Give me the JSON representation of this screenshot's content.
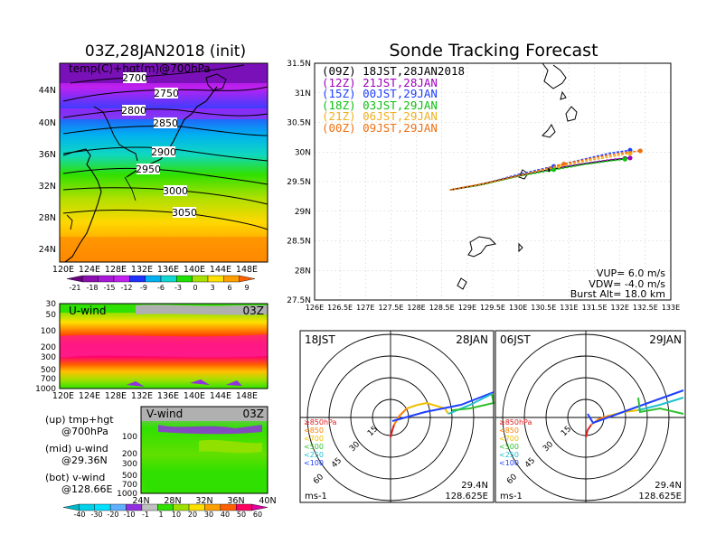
{
  "map_panel": {
    "title": "03Z,28JAN2018  (init)",
    "label": "temp(C)+hgt(m)@700hPa",
    "lat_ticks": [
      "44N",
      "40N",
      "36N",
      "32N",
      "28N",
      "24N"
    ],
    "lon_ticks": [
      "120E",
      "124E",
      "128E",
      "132E",
      "136E",
      "140E",
      "144E",
      "148E"
    ],
    "contour_labels": [
      "2700",
      "2750",
      "2800",
      "2850",
      "2900",
      "2950",
      "3000",
      "3050"
    ],
    "colorbar_labels": [
      "-21",
      "-18",
      "-15",
      "-12",
      "-9",
      "-6",
      "-3",
      "0",
      "3",
      "6",
      "9"
    ],
    "colorbar_colors": [
      "#6a0080",
      "#8c10b0",
      "#a818d8",
      "#c020f0",
      "#2030ff",
      "#00b0f0",
      "#10d8d0",
      "#20e000",
      "#a8e000",
      "#ffe000",
      "#ffa000",
      "#ff6000"
    ]
  },
  "u_panel": {
    "title": "U-wind",
    "time": "03Z",
    "y_ticks": [
      "30",
      "50",
      "100",
      "200",
      "300",
      "500",
      "700",
      "1000"
    ],
    "x_ticks": [
      "120E",
      "124E",
      "128E",
      "132E",
      "136E",
      "140E",
      "144E",
      "148E"
    ]
  },
  "v_panel": {
    "title": "V-wind",
    "time": "03Z",
    "y_ticks": [
      "100",
      "200",
      "300",
      "500",
      "700",
      "1000"
    ],
    "x_ticks": [
      "24N",
      "28N",
      "32N",
      "36N",
      "40N"
    ]
  },
  "notes": {
    "up_1": "(up) tmp+hgt",
    "up_2": "@700hPa",
    "mid_1": "(mid) u-wind",
    "mid_2": "@29.36N",
    "bot_1": "(bot) v-wind",
    "bot_2": "@128.66E"
  },
  "wind_colorbar": {
    "labels": [
      "-40",
      "-30",
      "-20",
      "-10",
      "-1",
      "1",
      "10",
      "20",
      "30",
      "40",
      "50",
      "60"
    ],
    "colors": [
      "#00b8c8",
      "#00d0e8",
      "#00e0ff",
      "#60b0ff",
      "#9030e0",
      "#c0c0c0",
      "#30e000",
      "#a0e000",
      "#ffe000",
      "#ffa000",
      "#ff6000",
      "#ff0060",
      "#e000a0"
    ]
  },
  "tracking": {
    "title": "Sonde Tracking Forecast",
    "legend": [
      {
        "label": "(09Z) 18JST,28JAN2018",
        "color": "#000000"
      },
      {
        "label": "(12Z) 21JST,28JAN",
        "color": "#a000c0"
      },
      {
        "label": "(15Z) 00JST,29JAN",
        "color": "#2040ff"
      },
      {
        "label": "(18Z) 03JST,29JAN",
        "color": "#10c010"
      },
      {
        "label": "(21Z) 06JST,29JAN",
        "color": "#f0b020"
      },
      {
        "label": "(00Z) 09JST,29JAN",
        "color": "#f07010"
      }
    ],
    "params": {
      "vup": "VUP=  6.0  m/s",
      "vdw": "VDW=  -4.0  m/s",
      "burst": "Burst Alt=  18.0  km"
    },
    "x_ticks": [
      "126E",
      "126.5E",
      "127E",
      "127.5E",
      "128E",
      "128.5E",
      "129E",
      "129.5E",
      "130E",
      "130.5E",
      "131E",
      "131.5E",
      "132E",
      "132.5E",
      "133E"
    ],
    "y_ticks": [
      "31.5N",
      "31N",
      "30.5N",
      "30N",
      "29.5N",
      "29N",
      "28.5N",
      "28N",
      "27.5N"
    ]
  },
  "hodographs": [
    {
      "time": "18JST",
      "date": "28JAN",
      "lat": "29.4N",
      "lon": "128.625E",
      "unit": "ms-1",
      "rings": [
        "15",
        "30",
        "45",
        "60"
      ]
    },
    {
      "time": "06JST",
      "date": "29JAN",
      "lat": "29.4N",
      "lon": "128.625E",
      "unit": "ms-1",
      "rings": [
        "15",
        "30",
        "45",
        "60"
      ]
    }
  ],
  "hodo_legend": [
    {
      "label": "≥850hPa",
      "color": "#e02020"
    },
    {
      "label": "<850",
      "color": "#ff8000"
    },
    {
      "label": "<700",
      "color": "#f0c000"
    },
    {
      "label": "<500",
      "color": "#30c030"
    },
    {
      "label": "<250",
      "color": "#20c0d0"
    },
    {
      "label": "<100",
      "color": "#2040ff"
    }
  ],
  "chart_data": {
    "type": "line",
    "title": "Sonde Tracking Forecast",
    "xlim": [
      126,
      133
    ],
    "ylim": [
      27.5,
      31.5
    ],
    "series": [
      {
        "name": "(09Z) 18JST,28JAN2018",
        "x": [
          128.66,
          129.2,
          129.9,
          130.6,
          131.3,
          131.8,
          132.1
        ],
        "y": [
          29.36,
          29.44,
          29.58,
          29.7,
          29.8,
          29.86,
          29.89
        ]
      },
      {
        "name": "(12Z) 21JST,28JAN",
        "x": [
          128.66,
          129.3,
          130.0,
          130.7,
          131.4,
          131.9,
          132.2
        ],
        "y": [
          29.36,
          29.45,
          29.6,
          29.72,
          29.82,
          29.88,
          29.9
        ]
      },
      {
        "name": "(15Z) 00JST,29JAN",
        "x": [
          128.66,
          129.3,
          130.0,
          130.7,
          131.3,
          131.8,
          132.2
        ],
        "y": [
          29.36,
          29.46,
          29.62,
          29.76,
          29.88,
          29.98,
          30.03
        ]
      },
      {
        "name": "(18Z) 03JST,29JAN",
        "x": [
          128.66,
          129.3,
          130.0,
          130.7,
          131.3,
          131.8,
          132.1
        ],
        "y": [
          29.36,
          29.45,
          29.59,
          29.7,
          29.79,
          29.85,
          29.88
        ]
      },
      {
        "name": "(21Z) 06JST,29JAN",
        "x": [
          128.66,
          129.3,
          130.1,
          130.8,
          131.4,
          131.9,
          132.2
        ],
        "y": [
          29.36,
          29.46,
          29.62,
          29.76,
          29.86,
          29.93,
          29.98
        ]
      },
      {
        "name": "(00Z) 09JST,29JAN",
        "x": [
          128.66,
          129.4,
          130.2,
          130.9,
          131.6,
          132.1,
          132.4
        ],
        "y": [
          29.36,
          29.48,
          29.64,
          29.8,
          29.92,
          29.99,
          30.02
        ]
      }
    ]
  }
}
